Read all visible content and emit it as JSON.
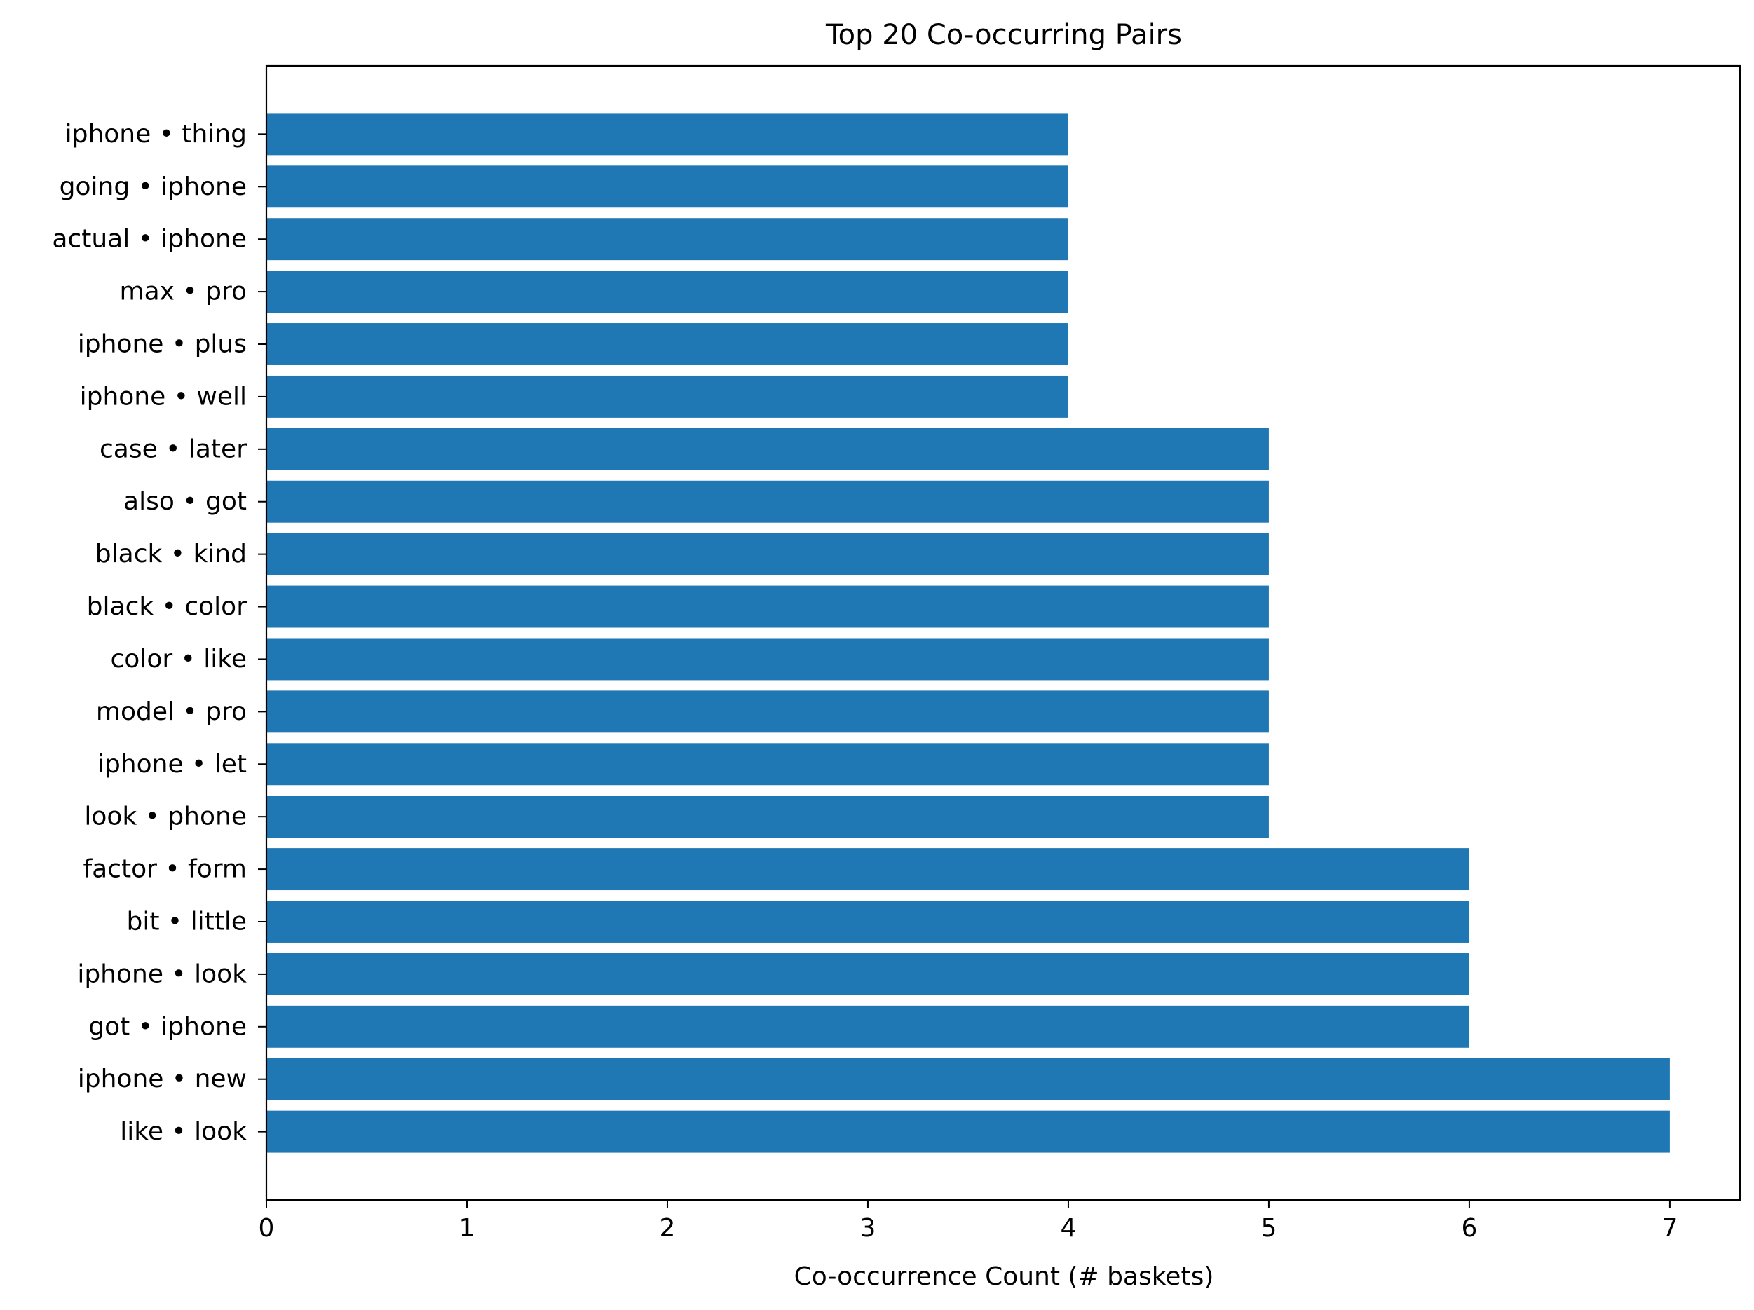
{
  "chart_data": {
    "type": "bar",
    "orientation": "horizontal",
    "title": "Top 20 Co-occurring Pairs",
    "xlabel": "Co-occurrence Count (# baskets)",
    "ylabel": "",
    "xlim": [
      0,
      7.35
    ],
    "xticks": [
      0,
      1,
      2,
      3,
      4,
      5,
      6,
      7
    ],
    "grid": false,
    "legend": "none",
    "bar_color": "#1f77b4",
    "categories": [
      "like • look",
      "iphone • new",
      "got • iphone",
      "iphone • look",
      "bit • little",
      "factor • form",
      "look • phone",
      "iphone • let",
      "model • pro",
      "color • like",
      "black • color",
      "black • kind",
      "also • got",
      "case • later",
      "iphone • well",
      "iphone • plus",
      "max • pro",
      "actual • iphone",
      "going • iphone",
      "iphone • thing"
    ],
    "values": [
      7,
      7,
      6,
      6,
      6,
      6,
      5,
      5,
      5,
      5,
      5,
      5,
      5,
      5,
      4,
      4,
      4,
      4,
      4,
      4
    ]
  }
}
